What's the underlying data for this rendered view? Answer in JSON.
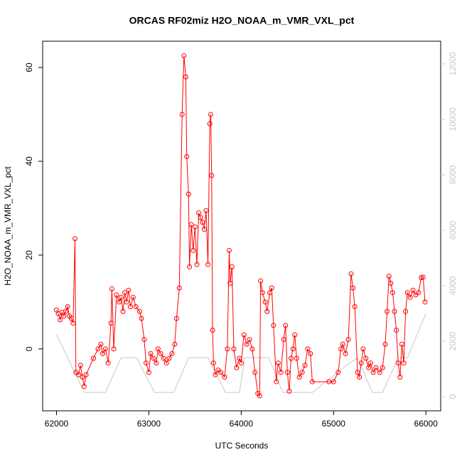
{
  "chart_data": {
    "type": "line",
    "title": "ORCAS RF02miz H2O_NOAA_m_VMR_VXL_pct",
    "x_label": "UTC Seconds",
    "y_label": "H2O_NOAA_m_VMR_VXL_pct",
    "xlim": [
      61850,
      66160
    ],
    "xticks": [
      62000,
      63000,
      64000,
      65000,
      66000
    ],
    "ylim": [
      -13.2,
      65.6
    ],
    "yticks": [
      0,
      20,
      40,
      60
    ],
    "y2lim": [
      -513,
      12820
    ],
    "y2ticks": [
      0,
      2000,
      4000,
      6000,
      8000,
      10000,
      12000
    ],
    "series": [
      {
        "color": "#ff0000",
        "markers": true,
        "x": [
          62000,
          62020,
          62040,
          62060,
          62080,
          62100,
          62120,
          62140,
          62160,
          62180,
          62200,
          62210,
          62240,
          62260,
          62280,
          62300,
          62320,
          62400,
          62450,
          62480,
          62500,
          62530,
          62560,
          62590,
          62600,
          62620,
          62650,
          62680,
          62700,
          62720,
          62740,
          62760,
          62780,
          62800,
          62830,
          62860,
          62900,
          62920,
          62950,
          62970,
          63000,
          63020,
          63050,
          63080,
          63100,
          63130,
          63160,
          63190,
          63220,
          63250,
          63280,
          63300,
          63330,
          63360,
          63380,
          63400,
          63410,
          63430,
          63440,
          63460,
          63480,
          63500,
          63520,
          63540,
          63560,
          63580,
          63600,
          63620,
          63640,
          63660,
          63670,
          63680,
          63690,
          63700,
          63720,
          63750,
          63780,
          63820,
          63850,
          63870,
          63880,
          63900,
          63920,
          63950,
          63980,
          64000,
          64030,
          64060,
          64090,
          64120,
          64150,
          64180,
          64200,
          64210,
          64230,
          64260,
          64280,
          64310,
          64330,
          64350,
          64380,
          64400,
          64430,
          64460,
          64480,
          64500,
          64520,
          64540,
          64560,
          64580,
          64600,
          64630,
          64660,
          64690,
          64720,
          64750,
          64770,
          64950,
          65000,
          65050,
          65080,
          65100,
          65130,
          65160,
          65190,
          65210,
          65230,
          65260,
          65280,
          65300,
          65320,
          65350,
          65380,
          65400,
          65430,
          65460,
          65500,
          65530,
          65560,
          65580,
          65600,
          65620,
          65640,
          65660,
          65680,
          65700,
          65720,
          65740,
          65760,
          65780,
          65800,
          65830,
          65860,
          65890,
          65920,
          65950,
          65970,
          65990
        ],
        "values": [
          8.3,
          7.5,
          6.2,
          7.8,
          7,
          8,
          9,
          7,
          6.5,
          5.5,
          23.5,
          -5,
          -5.5,
          -3.5,
          -6,
          -8,
          -5.5,
          -2,
          0,
          1,
          -1,
          0,
          -3,
          5.5,
          12.8,
          0,
          11.5,
          10,
          11,
          8,
          12,
          10,
          12.5,
          9,
          11,
          9,
          8,
          6.5,
          2,
          -3,
          -5,
          -1,
          -2,
          -3,
          0,
          -1,
          -2,
          -3,
          -2,
          -1,
          1,
          6.5,
          13,
          50,
          62.5,
          58,
          41,
          33,
          17.5,
          26.5,
          21,
          26,
          18,
          29,
          28,
          27,
          25.5,
          29.5,
          18,
          48,
          50,
          37,
          4,
          -3,
          -5.5,
          -4.5,
          -5,
          -6,
          0,
          21,
          14,
          17.5,
          0,
          -4,
          -2,
          -3,
          3,
          1,
          2,
          0,
          -5,
          -9.5,
          -10,
          14.5,
          12,
          10,
          8,
          12,
          13,
          5,
          -7,
          -3,
          -5,
          2,
          5,
          -5,
          -9,
          -2,
          0,
          3,
          -2,
          -6,
          -5,
          -3.5,
          0,
          -1,
          -7,
          -7,
          -7,
          -5,
          0,
          1,
          -1,
          2,
          16,
          13,
          9,
          -5,
          -6,
          -3,
          0,
          -2,
          -4,
          -3,
          -5,
          -4,
          -5,
          -4,
          1,
          8,
          15.5,
          14,
          12,
          8,
          4,
          -3,
          -6,
          1,
          -3,
          8,
          12,
          11,
          12.5,
          11.5,
          12,
          15.2,
          15.3,
          10
        ]
      },
      {
        "color": "#c8c8c8",
        "axis": "y2",
        "markers": false,
        "x": [
          62000,
          62300,
          62530,
          62700,
          62870,
          63060,
          63270,
          63430,
          63640,
          63830,
          63980,
          64040,
          64300,
          64450,
          64770,
          65130,
          65260,
          65420,
          65530,
          65700,
          65800,
          66000
        ],
        "values": [
          2250,
          150,
          150,
          1400,
          1400,
          150,
          150,
          1400,
          1400,
          150,
          150,
          1400,
          1400,
          150,
          150,
          1100,
          1400,
          150,
          150,
          1400,
          1400,
          3000
        ]
      }
    ]
  }
}
